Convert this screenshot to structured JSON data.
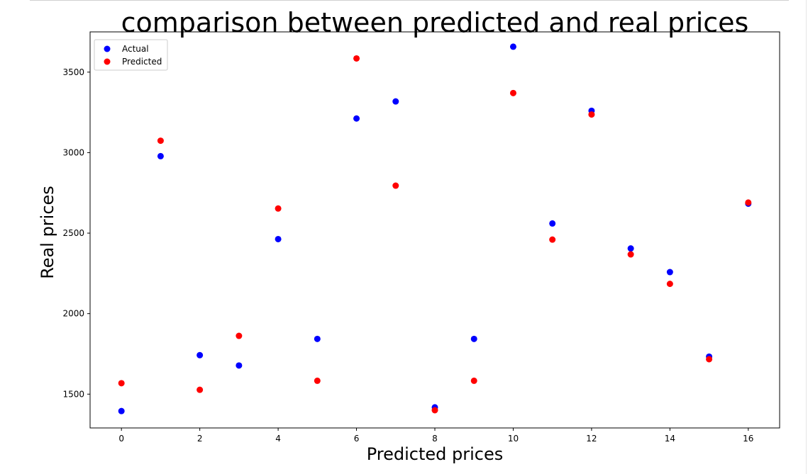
{
  "chart_data": {
    "type": "scatter",
    "title": "comparison between predicted and real prices",
    "xlabel": "Predicted prices",
    "ylabel": "Real prices",
    "xlim": [
      -0.8,
      16.8
    ],
    "ylim": [
      1290,
      3750
    ],
    "xticks": [
      0,
      2,
      4,
      6,
      8,
      10,
      12,
      14,
      16
    ],
    "yticks": [
      1500,
      2000,
      2500,
      3000,
      3500
    ],
    "grid": false,
    "legend_position": "top-left",
    "series": [
      {
        "name": "Actual",
        "color": "#0000ff",
        "x": [
          0,
          1,
          2,
          3,
          4,
          5,
          6,
          7,
          8,
          9,
          10,
          11,
          12,
          13,
          14,
          15,
          16
        ],
        "y": [
          1395,
          2978,
          1742,
          1678,
          2463,
          1843,
          3212,
          3318,
          1418,
          1843,
          3658,
          2560,
          3260,
          2405,
          2258,
          1733,
          2683
        ]
      },
      {
        "name": "Predicted",
        "color": "#ff0000",
        "x": [
          0,
          1,
          2,
          3,
          4,
          5,
          6,
          7,
          8,
          9,
          10,
          11,
          12,
          13,
          14,
          15,
          16
        ],
        "y": [
          1568,
          3074,
          1527,
          1862,
          2653,
          1583,
          3585,
          2795,
          1400,
          1583,
          3370,
          2460,
          3237,
          2368,
          2185,
          1717,
          2690
        ]
      }
    ]
  }
}
